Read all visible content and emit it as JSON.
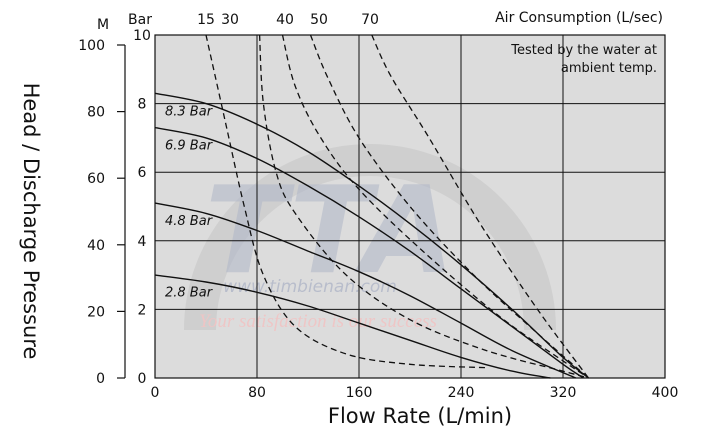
{
  "chart_data": {
    "type": "line",
    "xlabel": "Flow Rate (L/min)",
    "ylabel": "Head / Discharge Pressure",
    "x_ticks": [
      0,
      80,
      160,
      240,
      320,
      400
    ],
    "xlim": [
      0,
      400
    ],
    "y_left_unit": "M",
    "y_left_ticks": [
      0,
      20,
      40,
      60,
      80,
      100
    ],
    "y_left_lim": [
      0,
      100
    ],
    "y_right_unit": "Bar",
    "y_right_ticks": [
      0,
      2,
      4,
      6,
      8,
      10
    ],
    "y_right_lim": [
      0,
      10
    ],
    "air_title": "Air Consumption (L/sec)",
    "note_lines": [
      "Tested by the water at",
      "ambient temp."
    ],
    "watermark": {
      "logo": "TTA",
      "url": "www.timbienan.com",
      "slogan": "Your satisfaction is our success",
      "color": "#b0b6c8",
      "slogan_color": "#f1c4c4"
    },
    "pressure_series": [
      {
        "name": "8.3 Bar",
        "label": "8.3 Bar",
        "points": [
          [
            0,
            8.3
          ],
          [
            40,
            8.0
          ],
          [
            80,
            7.4
          ],
          [
            120,
            6.6
          ],
          [
            160,
            5.6
          ],
          [
            200,
            4.5
          ],
          [
            240,
            3.3
          ],
          [
            280,
            2.0
          ],
          [
            320,
            0.6
          ],
          [
            340,
            0
          ]
        ]
      },
      {
        "name": "6.9 Bar",
        "label": "6.9 Bar",
        "points": [
          [
            0,
            7.3
          ],
          [
            40,
            7.0
          ],
          [
            80,
            6.4
          ],
          [
            120,
            5.6
          ],
          [
            160,
            4.7
          ],
          [
            200,
            3.7
          ],
          [
            240,
            2.6
          ],
          [
            280,
            1.5
          ],
          [
            320,
            0.4
          ],
          [
            336,
            0
          ]
        ]
      },
      {
        "name": "4.8 Bar",
        "label": "4.8 Bar",
        "points": [
          [
            0,
            5.1
          ],
          [
            40,
            4.8
          ],
          [
            80,
            4.3
          ],
          [
            120,
            3.7
          ],
          [
            160,
            3.1
          ],
          [
            200,
            2.4
          ],
          [
            240,
            1.6
          ],
          [
            280,
            0.8
          ],
          [
            330,
            0
          ]
        ]
      },
      {
        "name": "2.8 Bar",
        "label": "2.8 Bar",
        "points": [
          [
            0,
            3.0
          ],
          [
            40,
            2.8
          ],
          [
            80,
            2.5
          ],
          [
            120,
            2.1
          ],
          [
            160,
            1.6
          ],
          [
            200,
            1.1
          ],
          [
            240,
            0.6
          ],
          [
            280,
            0.2
          ],
          [
            310,
            0
          ]
        ]
      }
    ],
    "air_series": [
      {
        "name": "15",
        "points": [
          [
            40,
            10
          ],
          [
            55,
            7.5
          ],
          [
            70,
            5
          ],
          [
            85,
            3
          ],
          [
            110,
            1.5
          ],
          [
            150,
            0.7
          ],
          [
            200,
            0.4
          ],
          [
            260,
            0.3
          ]
        ]
      },
      {
        "name": "30",
        "points": [
          [
            82,
            10
          ],
          [
            85,
            8
          ],
          [
            95,
            6
          ],
          [
            110,
            4.8
          ],
          [
            150,
            3
          ],
          [
            200,
            1.7
          ],
          [
            260,
            0.8
          ],
          [
            320,
            0.2
          ],
          [
            340,
            0
          ]
        ]
      },
      {
        "name": "40",
        "points": [
          [
            100,
            10
          ],
          [
            110,
            8.5
          ],
          [
            130,
            7
          ],
          [
            160,
            5.5
          ],
          [
            210,
            3.7
          ],
          [
            270,
            1.8
          ],
          [
            320,
            0.5
          ],
          [
            340,
            0
          ]
        ]
      },
      {
        "name": "50",
        "points": [
          [
            122,
            10
          ],
          [
            135,
            8.8
          ],
          [
            160,
            7
          ],
          [
            200,
            5
          ],
          [
            250,
            3
          ],
          [
            300,
            1.3
          ],
          [
            340,
            0
          ]
        ]
      },
      {
        "name": "70",
        "points": [
          [
            170,
            10
          ],
          [
            185,
            8.8
          ],
          [
            215,
            7
          ],
          [
            255,
            4.5
          ],
          [
            300,
            2
          ],
          [
            340,
            0
          ]
        ]
      }
    ]
  }
}
